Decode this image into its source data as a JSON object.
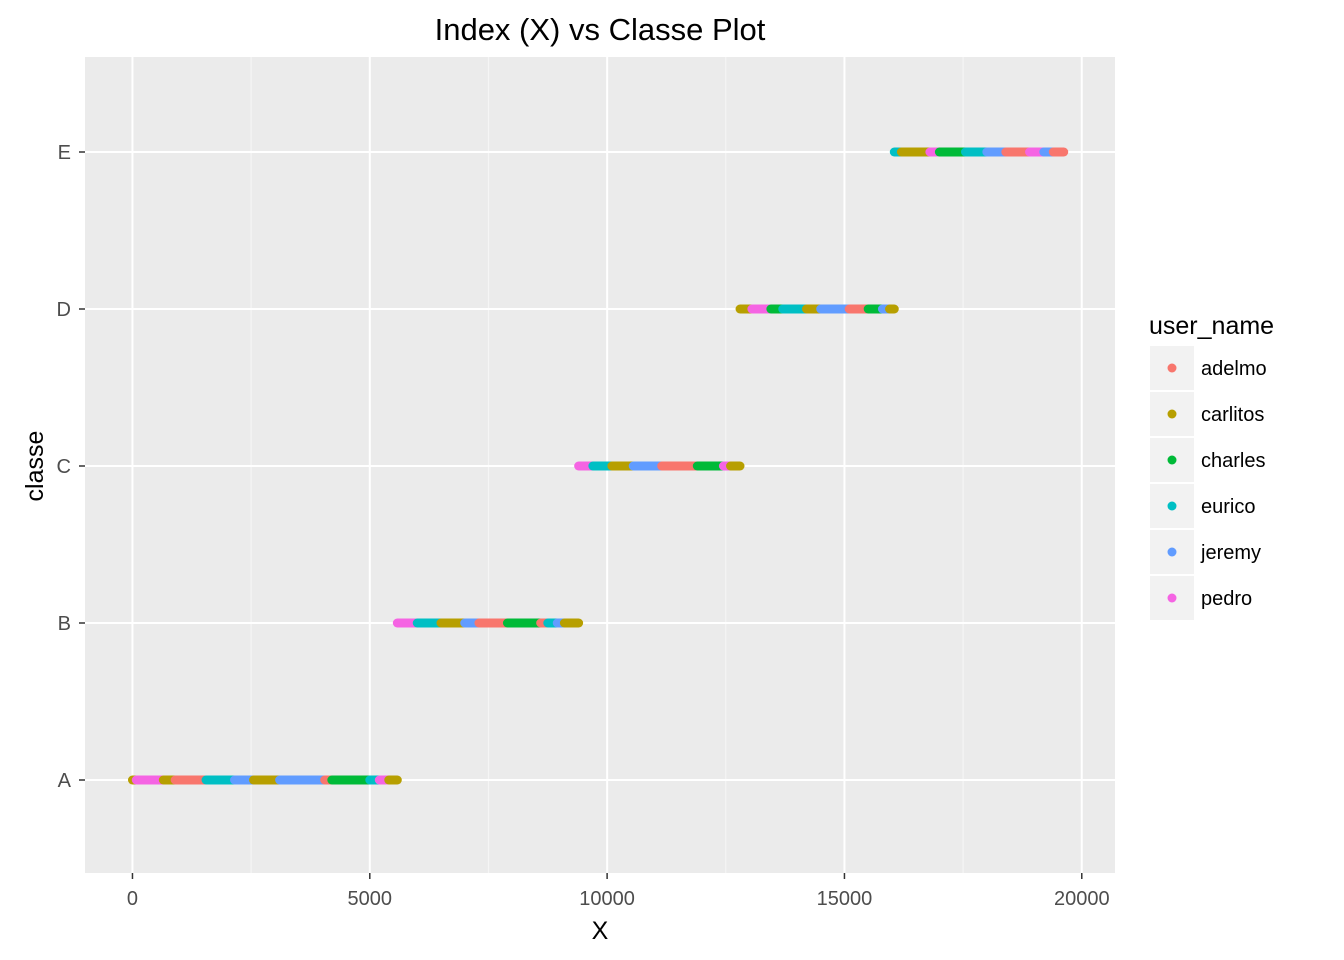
{
  "chart_data": {
    "type": "scatter",
    "title": "Index (X) vs Classe Plot",
    "xlabel": "X",
    "ylabel": "classe",
    "xlim": [
      -1000,
      20700
    ],
    "x_ticks": [
      0,
      5000,
      10000,
      15000,
      20000
    ],
    "x_tick_labels": [
      "0",
      "5000",
      "10000",
      "15000",
      "20000"
    ],
    "categories": [
      "A",
      "B",
      "C",
      "D",
      "E"
    ],
    "grid": true,
    "legend_position": "right",
    "legend_title": "user_name",
    "series": [
      {
        "name": "adelmo",
        "color": "#F8766D"
      },
      {
        "name": "carlitos",
        "color": "#B79F00"
      },
      {
        "name": "charles",
        "color": "#00BA38"
      },
      {
        "name": "eurico",
        "color": "#00BFC4"
      },
      {
        "name": "jeremy",
        "color": "#619CFF"
      },
      {
        "name": "pedro",
        "color": "#F564E3"
      }
    ],
    "segments": [
      {
        "classe": "A",
        "x_start": 0,
        "x_end": 80,
        "user": "carlitos"
      },
      {
        "classe": "A",
        "x_start": 80,
        "x_end": 650,
        "user": "pedro"
      },
      {
        "classe": "A",
        "x_start": 650,
        "x_end": 900,
        "user": "carlitos"
      },
      {
        "classe": "A",
        "x_start": 900,
        "x_end": 1550,
        "user": "adelmo"
      },
      {
        "classe": "A",
        "x_start": 1550,
        "x_end": 2150,
        "user": "eurico"
      },
      {
        "classe": "A",
        "x_start": 2150,
        "x_end": 2550,
        "user": "jeremy"
      },
      {
        "classe": "A",
        "x_start": 2550,
        "x_end": 3100,
        "user": "carlitos"
      },
      {
        "classe": "A",
        "x_start": 3100,
        "x_end": 4050,
        "user": "jeremy"
      },
      {
        "classe": "A",
        "x_start": 4050,
        "x_end": 4200,
        "user": "adelmo"
      },
      {
        "classe": "A",
        "x_start": 4200,
        "x_end": 5000,
        "user": "charles"
      },
      {
        "classe": "A",
        "x_start": 5000,
        "x_end": 5200,
        "user": "eurico"
      },
      {
        "classe": "A",
        "x_start": 5200,
        "x_end": 5400,
        "user": "pedro"
      },
      {
        "classe": "A",
        "x_start": 5400,
        "x_end": 5580,
        "user": "carlitos"
      },
      {
        "classe": "B",
        "x_start": 5580,
        "x_end": 6000,
        "user": "pedro"
      },
      {
        "classe": "B",
        "x_start": 6000,
        "x_end": 6500,
        "user": "eurico"
      },
      {
        "classe": "B",
        "x_start": 6500,
        "x_end": 7000,
        "user": "carlitos"
      },
      {
        "classe": "B",
        "x_start": 7000,
        "x_end": 7300,
        "user": "jeremy"
      },
      {
        "classe": "B",
        "x_start": 7300,
        "x_end": 7900,
        "user": "adelmo"
      },
      {
        "classe": "B",
        "x_start": 7900,
        "x_end": 8600,
        "user": "charles"
      },
      {
        "classe": "B",
        "x_start": 8600,
        "x_end": 8750,
        "user": "adelmo"
      },
      {
        "classe": "B",
        "x_start": 8750,
        "x_end": 8950,
        "user": "eurico"
      },
      {
        "classe": "B",
        "x_start": 8950,
        "x_end": 9100,
        "user": "jeremy"
      },
      {
        "classe": "B",
        "x_start": 9100,
        "x_end": 9400,
        "user": "carlitos"
      },
      {
        "classe": "C",
        "x_start": 9400,
        "x_end": 9700,
        "user": "pedro"
      },
      {
        "classe": "C",
        "x_start": 9700,
        "x_end": 10100,
        "user": "eurico"
      },
      {
        "classe": "C",
        "x_start": 10100,
        "x_end": 10550,
        "user": "carlitos"
      },
      {
        "classe": "C",
        "x_start": 10550,
        "x_end": 11150,
        "user": "jeremy"
      },
      {
        "classe": "C",
        "x_start": 11150,
        "x_end": 11900,
        "user": "adelmo"
      },
      {
        "classe": "C",
        "x_start": 11900,
        "x_end": 12450,
        "user": "charles"
      },
      {
        "classe": "C",
        "x_start": 12450,
        "x_end": 12600,
        "user": "pedro"
      },
      {
        "classe": "C",
        "x_start": 12600,
        "x_end": 12800,
        "user": "carlitos"
      },
      {
        "classe": "D",
        "x_start": 12800,
        "x_end": 13050,
        "user": "carlitos"
      },
      {
        "classe": "D",
        "x_start": 13050,
        "x_end": 13450,
        "user": "pedro"
      },
      {
        "classe": "D",
        "x_start": 13450,
        "x_end": 13700,
        "user": "charles"
      },
      {
        "classe": "D",
        "x_start": 13700,
        "x_end": 14200,
        "user": "eurico"
      },
      {
        "classe": "D",
        "x_start": 14200,
        "x_end": 14500,
        "user": "carlitos"
      },
      {
        "classe": "D",
        "x_start": 14500,
        "x_end": 15100,
        "user": "jeremy"
      },
      {
        "classe": "D",
        "x_start": 15100,
        "x_end": 15500,
        "user": "adelmo"
      },
      {
        "classe": "D",
        "x_start": 15500,
        "x_end": 15800,
        "user": "charles"
      },
      {
        "classe": "D",
        "x_start": 15800,
        "x_end": 15950,
        "user": "jeremy"
      },
      {
        "classe": "D",
        "x_start": 15950,
        "x_end": 16050,
        "user": "carlitos"
      },
      {
        "classe": "E",
        "x_start": 16050,
        "x_end": 16200,
        "user": "eurico"
      },
      {
        "classe": "E",
        "x_start": 16200,
        "x_end": 16800,
        "user": "carlitos"
      },
      {
        "classe": "E",
        "x_start": 16800,
        "x_end": 17000,
        "user": "pedro"
      },
      {
        "classe": "E",
        "x_start": 17000,
        "x_end": 17550,
        "user": "charles"
      },
      {
        "classe": "E",
        "x_start": 17550,
        "x_end": 18000,
        "user": "eurico"
      },
      {
        "classe": "E",
        "x_start": 18000,
        "x_end": 18400,
        "user": "jeremy"
      },
      {
        "classe": "E",
        "x_start": 18400,
        "x_end": 18900,
        "user": "adelmo"
      },
      {
        "classe": "E",
        "x_start": 18900,
        "x_end": 19200,
        "user": "pedro"
      },
      {
        "classe": "E",
        "x_start": 19200,
        "x_end": 19400,
        "user": "jeremy"
      },
      {
        "classe": "E",
        "x_start": 19400,
        "x_end": 19620,
        "user": "adelmo"
      }
    ]
  }
}
